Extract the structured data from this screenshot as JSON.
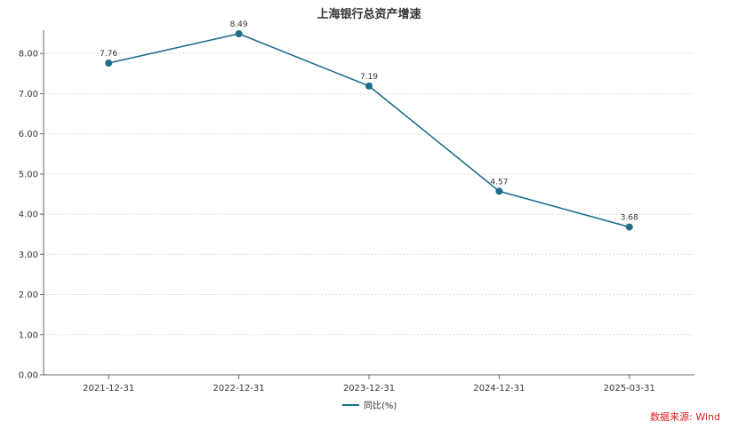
{
  "chart_data": {
    "type": "line",
    "title": "上海银行总资产增速",
    "categories": [
      "2021-12-31",
      "2022-12-31",
      "2023-12-31",
      "2024-12-31",
      "2025-03-31"
    ],
    "series": [
      {
        "name": "同比(%)",
        "values": [
          7.76,
          8.49,
          7.19,
          4.57,
          3.68
        ],
        "color": "#1f6e8c"
      }
    ],
    "data_labels": [
      "7.76",
      "8.49",
      "7.19",
      "4.57",
      "3.68"
    ],
    "yticks": [
      "0.00",
      "1.00",
      "2.00",
      "3.00",
      "4.00",
      "5.00",
      "6.00",
      "7.00",
      "8.00"
    ],
    "ylim": [
      0,
      8.8
    ],
    "grid": true,
    "legend_position": "bottom-center",
    "source": "数据来源: Wind"
  }
}
